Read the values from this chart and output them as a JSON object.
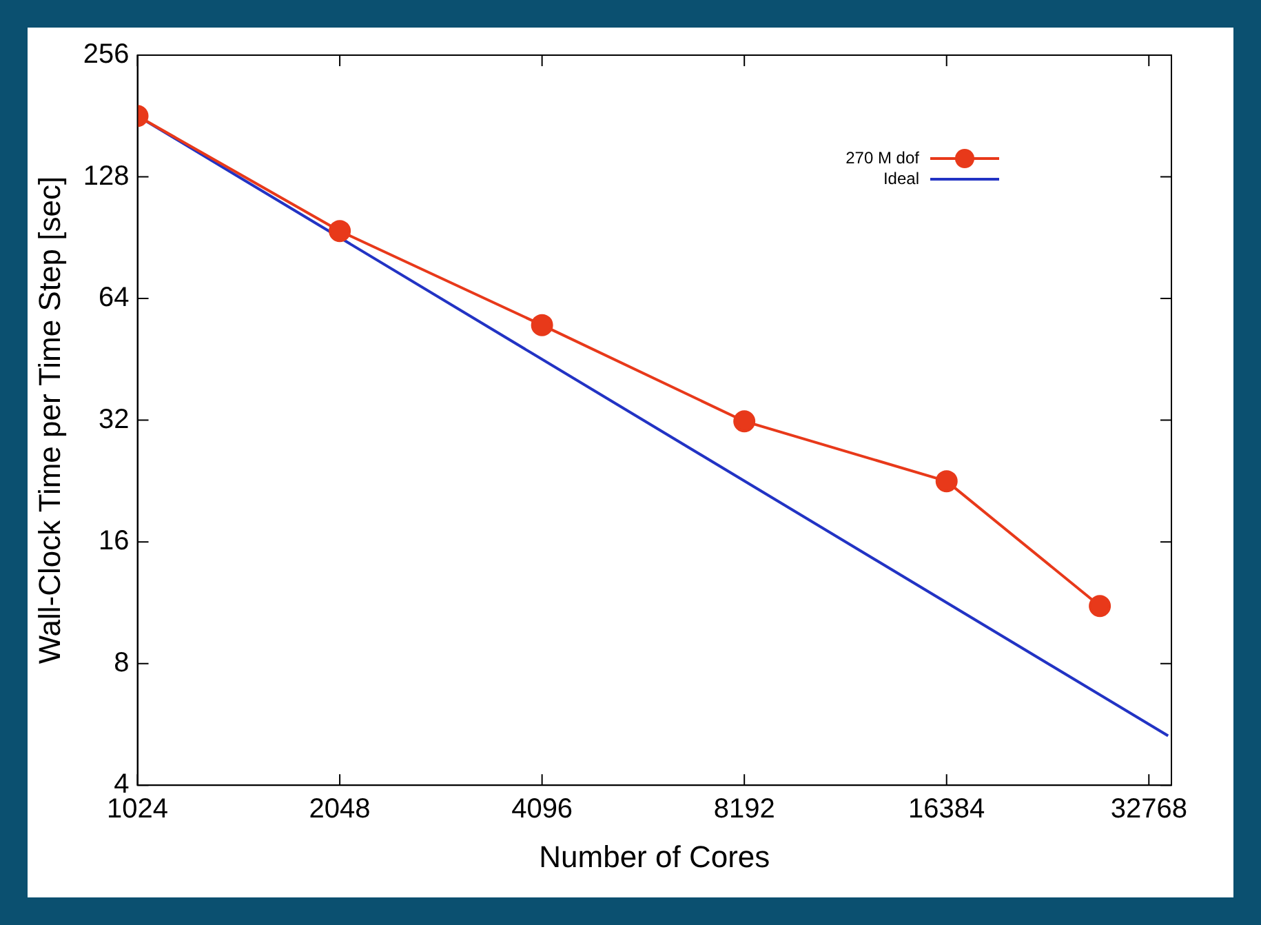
{
  "chart_data": {
    "type": "line",
    "xlabel": "Number of Cores",
    "ylabel": "Wall-Clock Time per Time Step [sec]",
    "log": "xy",
    "grid": false,
    "legend": "top right",
    "xlim": [
      1024,
      35400
    ],
    "xticks": [
      1024,
      2048,
      4096,
      8192,
      16384,
      32768
    ],
    "ylim": [
      4,
      256
    ],
    "yticks": [
      4,
      8,
      16,
      32,
      64,
      128,
      256
    ],
    "series": [
      {
        "name": "270 M dof",
        "color": "#e8391a",
        "marker": "circle",
        "x": [
          1024,
          2048,
          4096,
          8192,
          16384,
          27700
        ],
        "values": [
          181,
          94,
          55,
          31.8,
          22.6,
          11.1
        ]
      },
      {
        "name": "Ideal",
        "color": "#2233c4",
        "marker": "none",
        "x": [
          1024,
          35000
        ],
        "values": [
          181,
          5.3
        ]
      }
    ]
  }
}
